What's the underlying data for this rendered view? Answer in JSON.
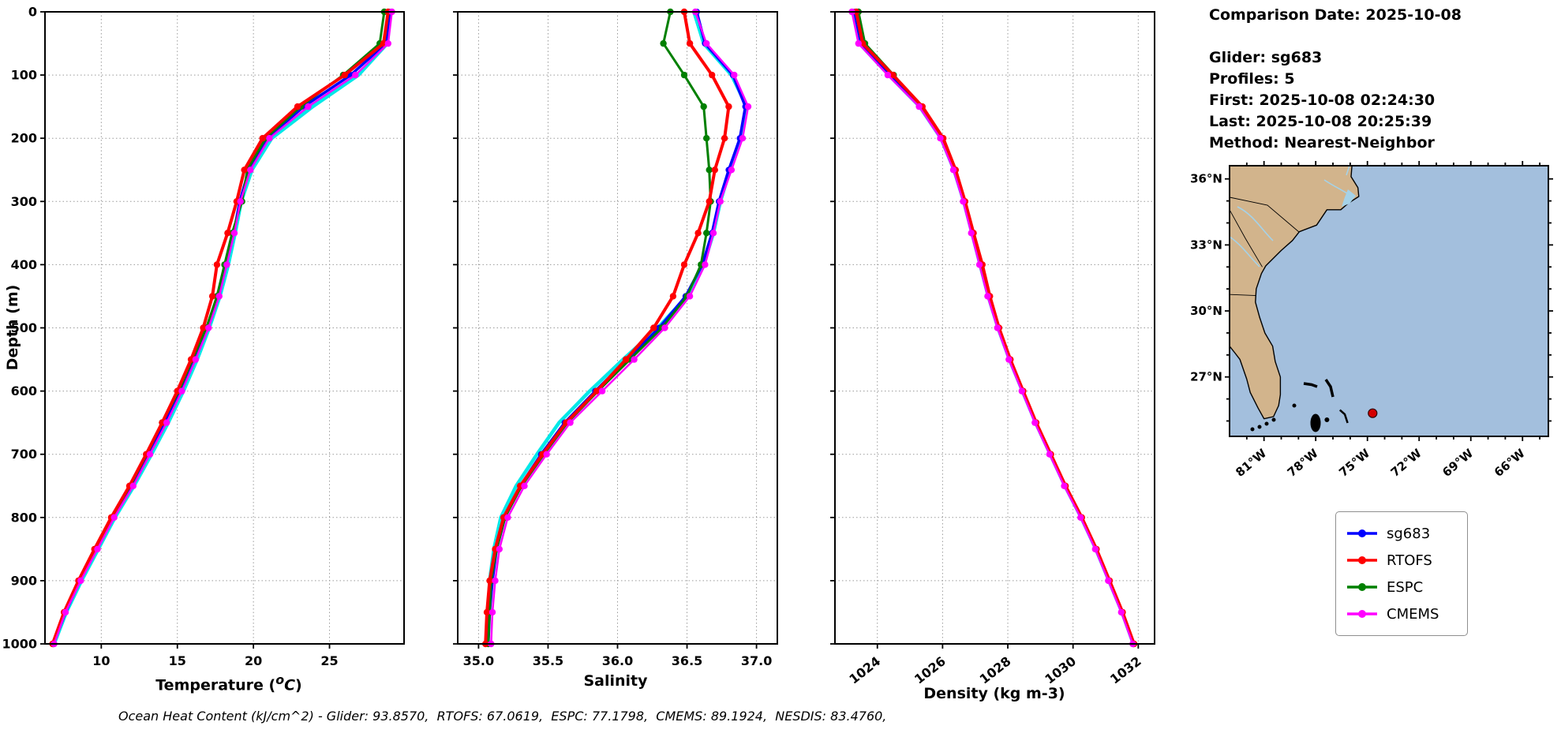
{
  "info": {
    "lines": [
      "Comparison Date: 2025-10-08",
      "",
      "Glider: sg683",
      "Profiles: 5",
      "First: 2025-10-08 02:24:30",
      "Last: 2025-10-08 20:25:39",
      "Method: Nearest-Neighbor"
    ]
  },
  "ylabel": "Depth (m)",
  "xlabels": {
    "temperature": {
      "pre": "Temperature (",
      "sup": "o",
      "main": "C",
      "post": ")"
    },
    "salinity": "Salinity",
    "density": "Density (kg m-3)"
  },
  "caption": "Ocean Heat Content (kJ/cm^2) - Glider: 93.8570,  RTOFS: 67.0619,  ESPC: 77.1798,  CMEMS: 89.1924,  NESDIS: 83.4760,",
  "legend": {
    "entries": [
      {
        "label": "sg683",
        "color": "#0000ff"
      },
      {
        "label": "RTOFS",
        "color": "#ff0000"
      },
      {
        "label": "ESPC",
        "color": "#008000"
      },
      {
        "label": "CMEMS",
        "color": "#ff00ff"
      }
    ]
  },
  "map": {
    "lat_labels": [
      "36°N",
      "33°N",
      "30°N",
      "27°N"
    ],
    "lon_labels": [
      "81°W",
      "78°W",
      "75°W",
      "72°W",
      "69°W",
      "66°W"
    ],
    "ocean_color": "#a3bfdd",
    "land_color": "#d2b48c",
    "river_color": "#a5d2e8",
    "marker_color": "#d40000",
    "marker": {
      "lon_w": 74.7,
      "lat_n": 25.35
    }
  },
  "chart_data": [
    {
      "type": "line",
      "title": "",
      "xlabel": "Temperature (°C)",
      "ylabel": "Depth (m)",
      "xlim": [
        6.3,
        29.9
      ],
      "ylim": [
        0,
        1000
      ],
      "y_inverted": true,
      "grid": true,
      "xticks": {
        "values": [
          10,
          15,
          20,
          25
        ],
        "labels": [
          "10",
          "15",
          "20",
          "25"
        ]
      },
      "yticks": {
        "values": [
          0,
          100,
          200,
          300,
          400,
          500,
          600,
          700,
          800,
          900,
          1000
        ],
        "labels": [
          "0",
          "100",
          "200",
          "300",
          "400",
          "500",
          "600",
          "700",
          "800",
          "900",
          "1000"
        ]
      },
      "depths": [
        0,
        50,
        100,
        150,
        200,
        250,
        300,
        350,
        400,
        450,
        500,
        550,
        600,
        650,
        700,
        750,
        800,
        850,
        900,
        950,
        1000
      ],
      "series": [
        {
          "name": "sg683 raw",
          "color": "#00e8e8",
          "values": [
            29.0,
            28.8,
            26.9,
            23.9,
            21.2,
            19.9,
            19.2,
            18.8,
            18.35,
            17.8,
            17.1,
            16.3,
            15.4,
            14.4,
            13.3,
            12.15,
            10.9,
            9.8,
            8.7,
            7.7,
            6.9
          ]
        },
        {
          "name": "sg683",
          "color": "#0000ff",
          "values": [
            28.95,
            28.7,
            26.4,
            23.3,
            20.9,
            19.7,
            19.1,
            18.7,
            18.2,
            17.7,
            17.0,
            16.1,
            15.2,
            14.2,
            13.1,
            12.0,
            10.8,
            9.7,
            8.6,
            7.65,
            6.85
          ]
        },
        {
          "name": "ESPC",
          "color": "#008000",
          "values": [
            28.6,
            28.3,
            25.9,
            23.1,
            20.8,
            19.6,
            19.25,
            18.6,
            18.1,
            17.6,
            16.9,
            16.0,
            15.1,
            14.0,
            13.0,
            11.9,
            10.7,
            9.6,
            8.55,
            7.6,
            6.85
          ]
        },
        {
          "name": "RTOFS",
          "color": "#ff0000",
          "values": [
            28.85,
            28.55,
            26.0,
            22.9,
            20.6,
            19.4,
            18.9,
            18.3,
            17.6,
            17.3,
            16.7,
            15.9,
            15.0,
            14.0,
            12.95,
            11.85,
            10.65,
            9.55,
            8.5,
            7.55,
            6.8
          ]
        },
        {
          "name": "CMEMS",
          "color": "#ff00ff",
          "values": [
            29.1,
            28.85,
            26.7,
            23.6,
            21.05,
            19.8,
            19.15,
            18.75,
            18.25,
            17.75,
            17.05,
            16.2,
            15.3,
            14.3,
            13.2,
            12.1,
            10.85,
            9.75,
            8.65,
            7.65,
            6.9
          ]
        }
      ]
    },
    {
      "type": "line",
      "title": "",
      "xlabel": "Salinity",
      "ylabel": "Depth (m)",
      "xlim": [
        34.85,
        37.15
      ],
      "ylim": [
        0,
        1000
      ],
      "y_inverted": true,
      "grid": true,
      "xticks": {
        "values": [
          35.0,
          35.5,
          36.0,
          36.5,
          37.0
        ],
        "labels": [
          "35.0",
          "35.5",
          "36.0",
          "36.5",
          "37.0"
        ]
      },
      "yticks": {
        "values": [
          0,
          100,
          200,
          300,
          400,
          500,
          600,
          700,
          800,
          900,
          1000
        ],
        "labels": []
      },
      "depths": [
        0,
        50,
        100,
        150,
        200,
        250,
        300,
        350,
        400,
        450,
        500,
        550,
        600,
        650,
        700,
        750,
        800,
        850,
        900,
        950,
        1000
      ],
      "series": [
        {
          "name": "sg683 raw",
          "color": "#00e8e8",
          "values": [
            36.55,
            36.62,
            36.82,
            36.93,
            36.89,
            36.81,
            36.74,
            36.69,
            36.62,
            36.5,
            36.29,
            36.04,
            35.8,
            35.58,
            35.42,
            35.27,
            35.16,
            35.11,
            35.08,
            35.07,
            35.06
          ]
        },
        {
          "name": "sg683",
          "color": "#0000ff",
          "values": [
            36.57,
            36.63,
            36.83,
            36.92,
            36.88,
            36.8,
            36.73,
            36.68,
            36.61,
            36.49,
            36.3,
            36.07,
            35.84,
            35.62,
            35.45,
            35.3,
            35.19,
            35.13,
            35.1,
            35.08,
            35.07
          ]
        },
        {
          "name": "ESPC",
          "color": "#008000",
          "values": [
            36.38,
            36.33,
            36.48,
            36.62,
            36.64,
            36.66,
            36.67,
            36.64,
            36.6,
            36.5,
            36.32,
            36.09,
            35.86,
            35.64,
            35.47,
            35.31,
            35.19,
            35.13,
            35.09,
            35.08,
            35.07
          ]
        },
        {
          "name": "RTOFS",
          "color": "#ff0000",
          "values": [
            36.48,
            36.52,
            36.68,
            36.8,
            36.77,
            36.7,
            36.66,
            36.58,
            36.48,
            36.4,
            36.26,
            36.06,
            35.85,
            35.63,
            35.46,
            35.3,
            35.18,
            35.12,
            35.08,
            35.06,
            35.05
          ]
        },
        {
          "name": "CMEMS",
          "color": "#ff00ff",
          "values": [
            36.56,
            36.64,
            36.84,
            36.94,
            36.9,
            36.82,
            36.74,
            36.69,
            36.63,
            36.52,
            36.34,
            36.12,
            35.89,
            35.66,
            35.49,
            35.33,
            35.21,
            35.15,
            35.12,
            35.1,
            35.09
          ]
        }
      ]
    },
    {
      "type": "line",
      "title": "",
      "xlabel": "Density (kg m-3)",
      "ylabel": "Depth (m)",
      "xlim": [
        1022.7,
        1032.5
      ],
      "ylim": [
        0,
        1000
      ],
      "y_inverted": true,
      "grid": true,
      "xticks": {
        "values": [
          1024,
          1026,
          1028,
          1030,
          1032
        ],
        "labels": [
          "1024",
          "1026",
          "1028",
          "1030",
          "1032"
        ]
      },
      "yticks": {
        "values": [
          0,
          100,
          200,
          300,
          400,
          500,
          600,
          700,
          800,
          900,
          1000
        ],
        "labels": []
      },
      "depths": [
        0,
        50,
        100,
        150,
        200,
        250,
        300,
        350,
        400,
        450,
        500,
        550,
        600,
        650,
        700,
        750,
        800,
        850,
        900,
        950,
        1000
      ],
      "series": [
        {
          "name": "sg683 raw",
          "color": "#00e8e8",
          "values": [
            1023.25,
            1023.45,
            1024.35,
            1025.3,
            1025.95,
            1026.35,
            1026.65,
            1026.9,
            1027.15,
            1027.4,
            1027.7,
            1028.05,
            1028.45,
            1028.85,
            1029.3,
            1029.75,
            1030.25,
            1030.7,
            1031.1,
            1031.5,
            1031.85
          ]
        },
        {
          "name": "sg683",
          "color": "#0000ff",
          "values": [
            1023.3,
            1023.5,
            1024.4,
            1025.32,
            1025.97,
            1026.37,
            1026.67,
            1026.92,
            1027.17,
            1027.42,
            1027.72,
            1028.07,
            1028.46,
            1028.86,
            1029.31,
            1029.76,
            1030.26,
            1030.71,
            1031.11,
            1031.51,
            1031.86
          ]
        },
        {
          "name": "ESPC",
          "color": "#008000",
          "values": [
            1023.42,
            1023.62,
            1024.5,
            1025.36,
            1026.0,
            1026.38,
            1026.66,
            1026.93,
            1027.19,
            1027.43,
            1027.71,
            1028.06,
            1028.45,
            1028.85,
            1029.3,
            1029.75,
            1030.25,
            1030.7,
            1031.1,
            1031.5,
            1031.85
          ]
        },
        {
          "name": "RTOFS",
          "color": "#ff0000",
          "values": [
            1023.35,
            1023.55,
            1024.48,
            1025.38,
            1026.02,
            1026.4,
            1026.69,
            1026.95,
            1027.22,
            1027.45,
            1027.73,
            1028.08,
            1028.47,
            1028.87,
            1029.32,
            1029.77,
            1030.27,
            1030.72,
            1031.12,
            1031.52,
            1031.87
          ]
        },
        {
          "name": "CMEMS",
          "color": "#ff00ff",
          "values": [
            1023.22,
            1023.42,
            1024.32,
            1025.28,
            1025.93,
            1026.33,
            1026.63,
            1026.88,
            1027.13,
            1027.38,
            1027.68,
            1028.03,
            1028.43,
            1028.83,
            1029.28,
            1029.73,
            1030.23,
            1030.68,
            1031.08,
            1031.48,
            1031.83
          ]
        }
      ]
    }
  ]
}
